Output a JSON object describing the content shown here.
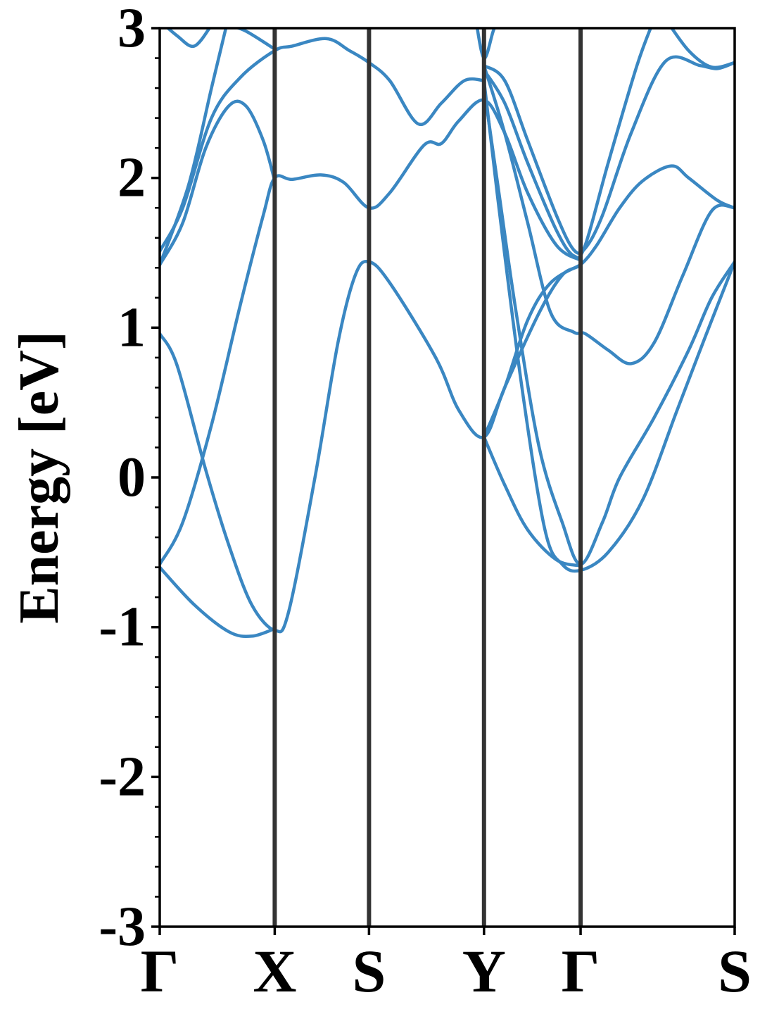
{
  "chart_data": {
    "type": "line",
    "title": "",
    "xlabel": "",
    "ylabel": "Energy [eV]",
    "ylim": [
      -3,
      3
    ],
    "yticks": [
      "3",
      "2",
      "1",
      "0",
      "-1",
      "-2",
      "-3"
    ],
    "ytick_values": [
      3,
      2,
      1,
      0,
      -1,
      -2,
      -3
    ],
    "minor_tick_step": 0.2,
    "grid": false,
    "legend": "none",
    "high_symmetry_points": [
      {
        "label": "Γ",
        "x": 0
      },
      {
        "label": "X",
        "x": 1
      },
      {
        "label": "S",
        "x": 1.82
      },
      {
        "label": "Y",
        "x": 2.82
      },
      {
        "label": "Γ",
        "x": 3.66
      },
      {
        "label": "S",
        "x": 5.0
      }
    ],
    "xlim": [
      0,
      5.0
    ],
    "line_color": "#3a87c2",
    "vline_color": "#333333",
    "series": [
      {
        "values": [
          [
            0,
            -0.58
          ],
          [
            0.2,
            -0.3
          ],
          [
            0.45,
            0.35
          ],
          [
            0.7,
            1.15
          ],
          [
            0.9,
            1.75
          ],
          [
            1.0,
            2.0
          ],
          [
            1.15,
            1.99
          ],
          [
            1.4,
            2.02
          ],
          [
            1.6,
            1.97
          ],
          [
            1.82,
            1.8
          ],
          [
            2.0,
            1.9
          ],
          [
            2.3,
            2.22
          ],
          [
            2.45,
            2.23
          ],
          [
            2.6,
            2.38
          ],
          [
            2.82,
            2.52
          ],
          [
            3.0,
            2.3
          ],
          [
            3.2,
            1.9
          ],
          [
            3.45,
            1.55
          ],
          [
            3.66,
            1.45
          ]
        ]
      },
      {
        "values": [
          [
            0,
            0.96
          ],
          [
            0.15,
            0.75
          ],
          [
            0.4,
            0.05
          ],
          [
            0.6,
            -0.45
          ],
          [
            0.8,
            -0.85
          ],
          [
            1.0,
            -1.02
          ],
          [
            1.12,
            -0.9
          ],
          [
            1.35,
            0.0
          ],
          [
            1.55,
            0.9
          ],
          [
            1.7,
            1.35
          ],
          [
            1.82,
            1.44
          ],
          [
            2.0,
            1.3
          ],
          [
            2.4,
            0.8
          ],
          [
            2.6,
            0.45
          ],
          [
            2.82,
            0.27
          ],
          [
            3.0,
            0.6
          ],
          [
            3.3,
            1.1
          ],
          [
            3.5,
            1.35
          ],
          [
            3.66,
            1.42
          ],
          [
            3.8,
            1.55
          ],
          [
            4.0,
            1.8
          ],
          [
            4.2,
            1.98
          ],
          [
            4.45,
            2.08
          ],
          [
            4.6,
            2.0
          ],
          [
            4.85,
            1.85
          ],
          [
            5.0,
            1.8
          ]
        ]
      },
      {
        "values": [
          [
            0,
            -0.6
          ],
          [
            0.3,
            -0.85
          ],
          [
            0.6,
            -1.03
          ],
          [
            0.8,
            -1.06
          ],
          [
            1.0,
            -1.01
          ]
        ]
      },
      {
        "values": [
          [
            0,
            1.51
          ],
          [
            0.2,
            1.8
          ],
          [
            0.45,
            2.4
          ],
          [
            0.7,
            2.67
          ],
          [
            1.0,
            2.85
          ],
          [
            1.15,
            2.88
          ],
          [
            1.45,
            2.93
          ],
          [
            1.65,
            2.85
          ],
          [
            1.82,
            2.77
          ],
          [
            2.0,
            2.65
          ],
          [
            2.25,
            2.36
          ],
          [
            2.45,
            2.5
          ],
          [
            2.65,
            2.65
          ],
          [
            2.82,
            2.65
          ]
        ]
      },
      {
        "values": [
          [
            0,
            1.42
          ],
          [
            0.2,
            1.7
          ],
          [
            0.4,
            2.2
          ],
          [
            0.6,
            2.48
          ],
          [
            0.75,
            2.48
          ],
          [
            0.9,
            2.25
          ],
          [
            1.0,
            1.98
          ]
        ]
      },
      {
        "values": [
          [
            0,
            3.05
          ],
          [
            0.15,
            2.95
          ],
          [
            0.3,
            2.88
          ],
          [
            0.45,
            3.02
          ]
        ]
      },
      {
        "values": [
          [
            0,
            1.42
          ],
          [
            0.25,
            1.95
          ],
          [
            0.45,
            2.6
          ],
          [
            0.6,
            3.08
          ]
        ]
      },
      {
        "values": [
          [
            0.6,
            3.02
          ],
          [
            0.75,
            2.98
          ],
          [
            1.0,
            2.86
          ]
        ]
      },
      {
        "values": [
          [
            2.75,
            3.05
          ],
          [
            2.82,
            2.8
          ],
          [
            2.9,
            2.98
          ],
          [
            2.95,
            3.08
          ]
        ]
      },
      {
        "values": [
          [
            2.82,
            2.75
          ],
          [
            3.0,
            2.65
          ],
          [
            3.2,
            2.25
          ],
          [
            3.45,
            1.75
          ],
          [
            3.6,
            1.52
          ],
          [
            3.7,
            1.53
          ],
          [
            3.85,
            1.75
          ],
          [
            4.1,
            2.3
          ],
          [
            4.4,
            2.78
          ],
          [
            4.7,
            2.75
          ],
          [
            4.85,
            2.73
          ],
          [
            5.0,
            2.77
          ]
        ]
      },
      {
        "values": [
          [
            2.82,
            2.72
          ],
          [
            3.0,
            2.5
          ],
          [
            3.2,
            2.1
          ],
          [
            3.45,
            1.65
          ],
          [
            3.6,
            1.48
          ],
          [
            3.7,
            1.55
          ],
          [
            3.9,
            2.1
          ],
          [
            4.15,
            2.75
          ],
          [
            4.3,
            3.06
          ]
        ]
      },
      {
        "values": [
          [
            4.4,
            3.06
          ],
          [
            4.6,
            2.85
          ],
          [
            4.8,
            2.74
          ],
          [
            5.0,
            2.77
          ]
        ]
      },
      {
        "values": [
          [
            2.82,
            2.6
          ],
          [
            2.95,
            1.9
          ],
          [
            3.1,
            1.1
          ],
          [
            3.3,
            0.2
          ],
          [
            3.5,
            -0.3
          ],
          [
            3.66,
            -0.58
          ],
          [
            3.85,
            -0.3
          ],
          [
            4.0,
            0.0
          ],
          [
            4.3,
            0.4
          ],
          [
            4.6,
            0.85
          ],
          [
            4.8,
            1.2
          ],
          [
            5.0,
            1.44
          ]
        ]
      },
      {
        "values": [
          [
            2.82,
            2.65
          ],
          [
            2.95,
            1.8
          ],
          [
            3.15,
            0.6
          ],
          [
            3.35,
            -0.35
          ],
          [
            3.5,
            -0.58
          ],
          [
            3.66,
            -0.62
          ],
          [
            3.9,
            -0.5
          ],
          [
            4.2,
            -0.15
          ],
          [
            4.5,
            0.45
          ],
          [
            4.75,
            0.95
          ],
          [
            5.0,
            1.44
          ]
        ]
      },
      {
        "values": [
          [
            2.82,
            0.27
          ],
          [
            3.0,
            -0.05
          ],
          [
            3.2,
            -0.35
          ],
          [
            3.45,
            -0.55
          ],
          [
            3.66,
            -0.59
          ]
        ]
      },
      {
        "values": [
          [
            2.82,
            2.75
          ],
          [
            3.0,
            2.3
          ],
          [
            3.2,
            1.7
          ],
          [
            3.4,
            1.1
          ],
          [
            3.6,
            0.97
          ],
          [
            3.7,
            0.96
          ],
          [
            3.9,
            0.85
          ],
          [
            4.1,
            0.76
          ],
          [
            4.3,
            0.9
          ],
          [
            4.55,
            1.35
          ],
          [
            4.8,
            1.78
          ],
          [
            5.0,
            1.8
          ]
        ]
      },
      {
        "values": [
          [
            2.82,
            0.27
          ],
          [
            3.0,
            0.6
          ],
          [
            3.2,
            1.05
          ],
          [
            3.4,
            1.3
          ],
          [
            3.66,
            1.42
          ]
        ]
      }
    ]
  }
}
